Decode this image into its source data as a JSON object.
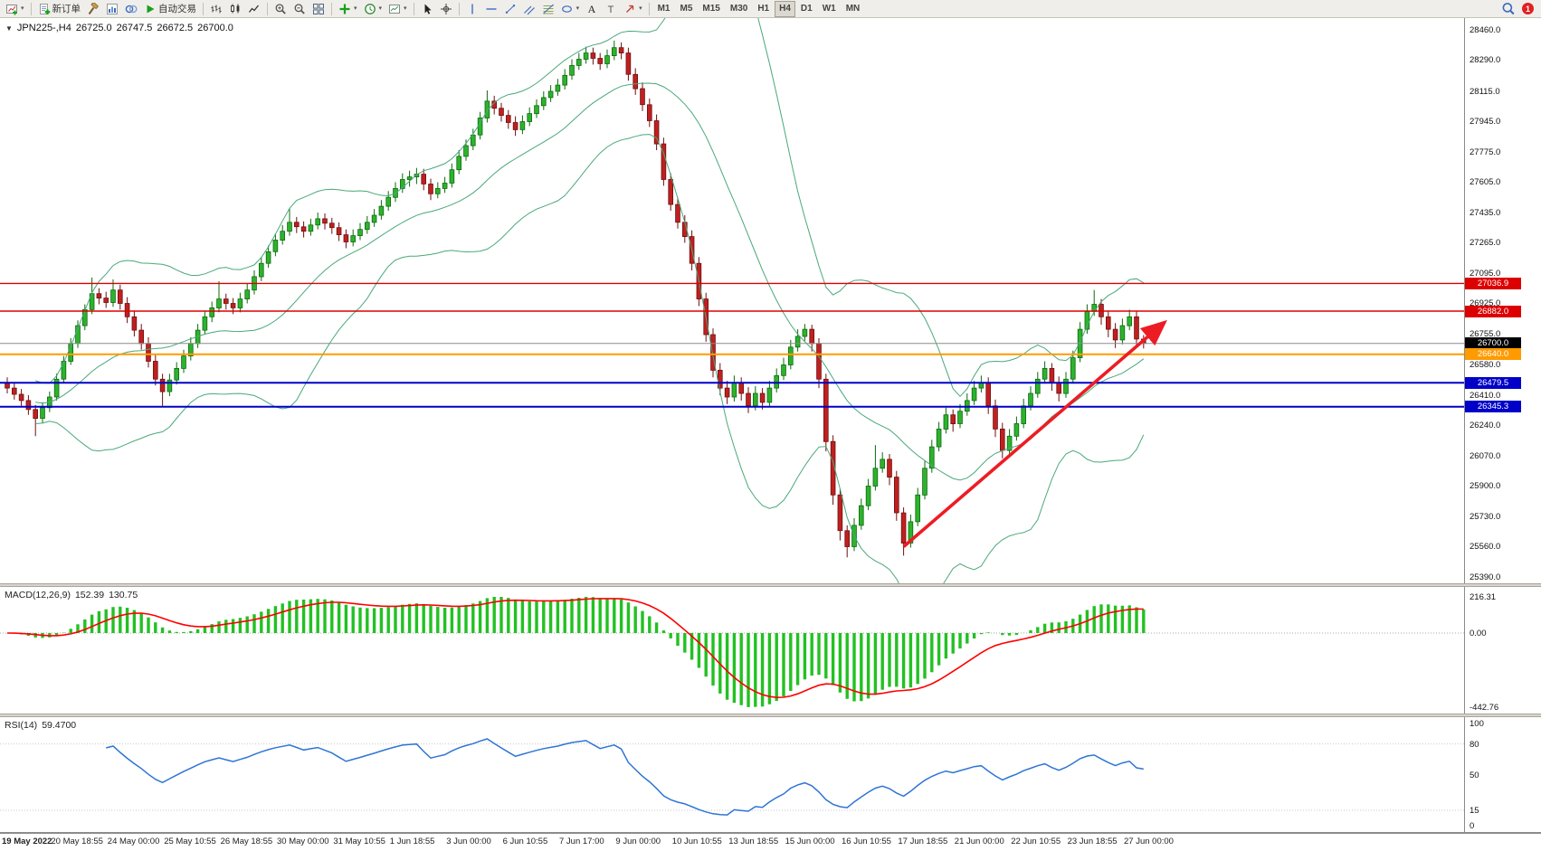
{
  "icons": {
    "symbol_caret": "▼",
    "caret_down": "▾"
  },
  "toolbar": {
    "notification_count": "1",
    "items": [
      {
        "type": "icon",
        "name": "new-chart-button",
        "icon": "new-chart",
        "caret": true
      },
      {
        "type": "sep"
      },
      {
        "type": "icon",
        "name": "new-order-button",
        "icon": "new-order",
        "label": "新订单"
      },
      {
        "type": "icon",
        "name": "strategy-tester-button",
        "icon": "hammer"
      },
      {
        "type": "icon",
        "name": "market-watch-button",
        "icon": "market"
      },
      {
        "type": "icon",
        "name": "data-window-button",
        "icon": "data-window"
      },
      {
        "type": "icon",
        "name": "auto-trading-button",
        "icon": "play",
        "label": "自动交易"
      },
      {
        "type": "sep"
      },
      {
        "type": "icon",
        "name": "bar-chart-button",
        "icon": "bars"
      },
      {
        "type": "icon",
        "name": "candlestick-chart-button",
        "icon": "candles"
      },
      {
        "type": "icon",
        "name": "line-chart-button",
        "icon": "line"
      },
      {
        "type": "sep"
      },
      {
        "type": "icon",
        "name": "zoom-in-button",
        "icon": "zoom-in"
      },
      {
        "type": "icon",
        "name": "zoom-out-button",
        "icon": "zoom-out"
      },
      {
        "type": "icon",
        "name": "tile-windows-button",
        "icon": "tile"
      },
      {
        "type": "sep"
      },
      {
        "type": "icon",
        "name": "indicators-button",
        "icon": "indicators",
        "caret": true
      },
      {
        "type": "icon",
        "name": "periods-button",
        "icon": "clock",
        "caret": true
      },
      {
        "type": "icon",
        "name": "templates-button",
        "icon": "template",
        "caret": true
      },
      {
        "type": "sep"
      },
      {
        "type": "icon",
        "name": "cursor-button",
        "icon": "cursor"
      },
      {
        "type": "icon",
        "name": "crosshair-button",
        "icon": "crosshair"
      },
      {
        "type": "sep"
      },
      {
        "type": "icon",
        "name": "vertical-line-button",
        "icon": "vline"
      },
      {
        "type": "icon",
        "name": "horizontal-line-button",
        "icon": "hline"
      },
      {
        "type": "icon",
        "name": "trendline-button",
        "icon": "trendline"
      },
      {
        "type": "icon",
        "name": "equidistant-channel-button",
        "icon": "channel"
      },
      {
        "type": "icon",
        "name": "fibonacci-button",
        "icon": "fibo"
      },
      {
        "type": "icon",
        "name": "shapes-button",
        "icon": "shapes",
        "caret": true
      },
      {
        "type": "icon",
        "name": "text-button",
        "icon": "text-a"
      },
      {
        "type": "icon",
        "name": "text-label-button",
        "icon": "text-t"
      },
      {
        "type": "icon",
        "name": "arrows-button",
        "icon": "arrow-glyph",
        "caret": true
      },
      {
        "type": "sep"
      },
      {
        "type": "tf",
        "name": "timeframe-m1-button",
        "label": "M1"
      },
      {
        "type": "tf",
        "name": "timeframe-m5-button",
        "label": "M5"
      },
      {
        "type": "tf",
        "name": "timeframe-m15-button",
        "label": "M15"
      },
      {
        "type": "tf",
        "name": "timeframe-m30-button",
        "label": "M30"
      },
      {
        "type": "tf",
        "name": "timeframe-h1-button",
        "label": "H1"
      },
      {
        "type": "tf",
        "name": "timeframe-h4-button",
        "label": "H4",
        "active": true
      },
      {
        "type": "tf",
        "name": "timeframe-d1-button",
        "label": "D1"
      },
      {
        "type": "tf",
        "name": "timeframe-w1-button",
        "label": "W1"
      },
      {
        "type": "tf",
        "name": "timeframe-mn-button",
        "label": "MN"
      }
    ]
  },
  "chart": {
    "symbol_label": "JPN225-,H4",
    "ohlc": {
      "open": "26725.0",
      "high": "26747.5",
      "low": "26672.5",
      "close": "26700.0"
    },
    "colors": {
      "bull": "#2eb22e",
      "bull_dark": "#0b6b0b",
      "bear": "#c02020",
      "bear_dark": "#6e0f0f",
      "bollinger": "#4aa87a",
      "macd_hist": "#22c122",
      "macd_signal": "#ff0000",
      "rsi": "#2e75d4",
      "red_line": "#dd0000",
      "blue_line": "#0000c8",
      "orange_line": "#ff9b00",
      "current_price_line": "#8c8c8c",
      "current_price_box": "#000000",
      "arrow": "#ed1c24",
      "background": "#ffffff"
    },
    "price_axis": {
      "labels": [
        "28460.0",
        "28290.0",
        "28115.0",
        "27945.0",
        "27775.0",
        "27605.0",
        "27435.0",
        "27265.0",
        "27095.0",
        "26925.0",
        "26755.0",
        "26580.0",
        "26410.0",
        "26240.0",
        "26070.0",
        "25900.0",
        "25730.0",
        "25560.0",
        "25390.0"
      ]
    },
    "hlines": [
      {
        "price": 27036.9,
        "label": "27036.9",
        "color": "#dd0000",
        "width": 1.4
      },
      {
        "price": 26882.0,
        "label": "26882.0",
        "color": "#dd0000",
        "width": 1.4
      },
      {
        "price": 26700.0,
        "label": "26700.0",
        "color": "#8c8c8c",
        "box": "#000000",
        "width": 1
      },
      {
        "price": 26640.0,
        "label": "26640.0",
        "color": "#ff9b00",
        "width": 2
      },
      {
        "price": 26479.5,
        "label": "26479.5",
        "color": "#0000c8",
        "width": 2
      },
      {
        "price": 26345.3,
        "label": "26345.3",
        "color": "#0000c8",
        "width": 2
      }
    ],
    "arrow": {
      "i1": 127,
      "p1": 25560,
      "i2": 164,
      "p2": 26820,
      "color": "#ed1c24"
    },
    "time_axis": {
      "labels": [
        "19 May 2022",
        "20 May 18:55",
        "24 May 00:00",
        "25 May 10:55",
        "26 May 18:55",
        "30 May 00:00",
        "31 May 10:55",
        "1 Jun 18:55",
        "3 Jun 00:00",
        "6 Jun 10:55",
        "7 Jun 17:00",
        "9 Jun 00:00",
        "10 Jun 10:55",
        "13 Jun 18:55",
        "15 Jun 00:00",
        "16 Jun 10:55",
        "17 Jun 18:55",
        "21 Jun 00:00",
        "22 Jun 10:55",
        "23 Jun 18:55",
        "27 Jun 00:00"
      ]
    }
  },
  "chart_data": {
    "type": "candlestick",
    "symbol": "JPN225-",
    "timeframe": "H4",
    "y_range": [
      25390,
      28460
    ],
    "indicators": {
      "bollinger": {
        "period": 20,
        "deviation": 2
      },
      "macd": {
        "label": "MACD(12,26,9)",
        "value_main": "152.39",
        "value_signal": "130.75",
        "params": [
          12,
          26,
          9
        ],
        "scale_labels": [
          "216.31",
          "0.00",
          "-442.76"
        ]
      },
      "rsi": {
        "label": "RSI(14)",
        "value": "59.4700",
        "period": 14,
        "scale_labels": [
          "100",
          "80",
          "50",
          "15",
          "0"
        ]
      }
    },
    "candles": [
      [
        26480,
        26510,
        26420,
        26450
      ],
      [
        26450,
        26480,
        26385,
        26415
      ],
      [
        26415,
        26445,
        26350,
        26380
      ],
      [
        26380,
        26410,
        26300,
        26330
      ],
      [
        26330,
        26355,
        26180,
        26280
      ],
      [
        26280,
        26370,
        26255,
        26340
      ],
      [
        26340,
        26430,
        26315,
        26400
      ],
      [
        26400,
        26530,
        26380,
        26500
      ],
      [
        26500,
        26630,
        26480,
        26600
      ],
      [
        26600,
        26730,
        26580,
        26700
      ],
      [
        26700,
        26830,
        26675,
        26800
      ],
      [
        26800,
        26920,
        26775,
        26890
      ],
      [
        26890,
        27070,
        26865,
        26980
      ],
      [
        26980,
        27010,
        26920,
        26955
      ],
      [
        26955,
        26990,
        26900,
        26930
      ],
      [
        26930,
        27060,
        26905,
        27000
      ],
      [
        27000,
        27030,
        26890,
        26925
      ],
      [
        26925,
        26960,
        26815,
        26850
      ],
      [
        26850,
        26885,
        26740,
        26775
      ],
      [
        26775,
        26810,
        26665,
        26700
      ],
      [
        26700,
        26735,
        26565,
        26600
      ],
      [
        26600,
        26640,
        26465,
        26500
      ],
      [
        26500,
        26530,
        26350,
        26430
      ],
      [
        26430,
        26530,
        26405,
        26495
      ],
      [
        26495,
        26595,
        26470,
        26560
      ],
      [
        26560,
        26665,
        26535,
        26630
      ],
      [
        26630,
        26735,
        26605,
        26700
      ],
      [
        26700,
        26810,
        26675,
        26775
      ],
      [
        26775,
        26885,
        26750,
        26850
      ],
      [
        26850,
        26935,
        26820,
        26900
      ],
      [
        26900,
        27050,
        26875,
        26950
      ],
      [
        26950,
        26980,
        26890,
        26925
      ],
      [
        26925,
        26955,
        26865,
        26900
      ],
      [
        26900,
        26985,
        26875,
        26950
      ],
      [
        26950,
        27035,
        26925,
        27000
      ],
      [
        27000,
        27110,
        26975,
        27075
      ],
      [
        27075,
        27185,
        27050,
        27150
      ],
      [
        27150,
        27250,
        27125,
        27215
      ],
      [
        27215,
        27315,
        27190,
        27280
      ],
      [
        27280,
        27365,
        27255,
        27330
      ],
      [
        27330,
        27460,
        27305,
        27380
      ],
      [
        27380,
        27410,
        27320,
        27355
      ],
      [
        27355,
        27385,
        27295,
        27330
      ],
      [
        27330,
        27400,
        27305,
        27365
      ],
      [
        27365,
        27435,
        27340,
        27400
      ],
      [
        27400,
        27430,
        27340,
        27375
      ],
      [
        27375,
        27405,
        27315,
        27350
      ],
      [
        27350,
        27380,
        27275,
        27310
      ],
      [
        27310,
        27340,
        27235,
        27270
      ],
      [
        27270,
        27340,
        27245,
        27305
      ],
      [
        27305,
        27375,
        27280,
        27340
      ],
      [
        27340,
        27415,
        27315,
        27380
      ],
      [
        27380,
        27455,
        27355,
        27420
      ],
      [
        27420,
        27505,
        27395,
        27470
      ],
      [
        27470,
        27555,
        27445,
        27520
      ],
      [
        27520,
        27605,
        27495,
        27570
      ],
      [
        27570,
        27655,
        27545,
        27620
      ],
      [
        27620,
        27670,
        27580,
        27635
      ],
      [
        27635,
        27685,
        27595,
        27650
      ],
      [
        27650,
        27680,
        27560,
        27595
      ],
      [
        27595,
        27625,
        27505,
        27540
      ],
      [
        27540,
        27605,
        27515,
        27570
      ],
      [
        27570,
        27635,
        27545,
        27600
      ],
      [
        27600,
        27710,
        27575,
        27675
      ],
      [
        27675,
        27785,
        27650,
        27750
      ],
      [
        27750,
        27845,
        27725,
        27810
      ],
      [
        27810,
        27905,
        27785,
        27870
      ],
      [
        27870,
        28000,
        27845,
        27965
      ],
      [
        27965,
        28120,
        27940,
        28060
      ],
      [
        28060,
        28090,
        27985,
        28020
      ],
      [
        28020,
        28050,
        27945,
        27980
      ],
      [
        27980,
        28010,
        27905,
        27940
      ],
      [
        27940,
        27975,
        27865,
        27900
      ],
      [
        27900,
        27980,
        27875,
        27945
      ],
      [
        27945,
        28025,
        27920,
        27990
      ],
      [
        27990,
        28070,
        27965,
        28035
      ],
      [
        28035,
        28115,
        28010,
        28080
      ],
      [
        28080,
        28150,
        28055,
        28115
      ],
      [
        28115,
        28185,
        28090,
        28150
      ],
      [
        28150,
        28240,
        28125,
        28205
      ],
      [
        28205,
        28295,
        28180,
        28260
      ],
      [
        28260,
        28330,
        28235,
        28295
      ],
      [
        28295,
        28365,
        28270,
        28330
      ],
      [
        28330,
        28360,
        28265,
        28300
      ],
      [
        28300,
        28330,
        28235,
        28270
      ],
      [
        28270,
        28350,
        28245,
        28315
      ],
      [
        28315,
        28400,
        28290,
        28360
      ],
      [
        28360,
        28390,
        28295,
        28330
      ],
      [
        28330,
        28360,
        28175,
        28210
      ],
      [
        28210,
        28245,
        28095,
        28130
      ],
      [
        28130,
        28165,
        28005,
        28040
      ],
      [
        28040,
        28075,
        27915,
        27950
      ],
      [
        27950,
        27985,
        27785,
        27820
      ],
      [
        27820,
        27855,
        27585,
        27620
      ],
      [
        27620,
        27655,
        27445,
        27480
      ],
      [
        27480,
        27520,
        27345,
        27380
      ],
      [
        27380,
        27420,
        27265,
        27300
      ],
      [
        27300,
        27335,
        27110,
        27150
      ],
      [
        27150,
        27185,
        26910,
        26950
      ],
      [
        26950,
        26985,
        26710,
        26750
      ],
      [
        26750,
        26785,
        26510,
        26550
      ],
      [
        26550,
        26590,
        26410,
        26450
      ],
      [
        26450,
        26490,
        26360,
        26400
      ],
      [
        26400,
        26520,
        26375,
        26480
      ],
      [
        26480,
        26510,
        26380,
        26420
      ],
      [
        26420,
        26455,
        26310,
        26350
      ],
      [
        26350,
        26460,
        26325,
        26420
      ],
      [
        26420,
        26450,
        26330,
        26370
      ],
      [
        26370,
        26490,
        26345,
        26450
      ],
      [
        26450,
        26560,
        26425,
        26520
      ],
      [
        26520,
        26620,
        26495,
        26580
      ],
      [
        26580,
        26720,
        26555,
        26680
      ],
      [
        26680,
        26780,
        26655,
        26740
      ],
      [
        26740,
        26810,
        26715,
        26780
      ],
      [
        26780,
        26805,
        26655,
        26700
      ],
      [
        26700,
        26730,
        26450,
        26500
      ],
      [
        26500,
        26530,
        26095,
        26150
      ],
      [
        26150,
        26185,
        25795,
        25850
      ],
      [
        25850,
        25885,
        25595,
        25650
      ],
      [
        25650,
        25680,
        25500,
        25560
      ],
      [
        25560,
        25720,
        25535,
        25680
      ],
      [
        25680,
        25830,
        25655,
        25790
      ],
      [
        25790,
        25940,
        25765,
        25900
      ],
      [
        25900,
        26130,
        25875,
        26000
      ],
      [
        26000,
        26090,
        25975,
        26050
      ],
      [
        26050,
        26080,
        25905,
        25950
      ],
      [
        25950,
        25985,
        25705,
        25750
      ],
      [
        25750,
        25780,
        25510,
        25580
      ],
      [
        25580,
        25740,
        25555,
        25700
      ],
      [
        25700,
        25890,
        25675,
        25850
      ],
      [
        25850,
        26040,
        25825,
        26000
      ],
      [
        26000,
        26160,
        25975,
        26120
      ],
      [
        26120,
        26260,
        26095,
        26220
      ],
      [
        26220,
        26340,
        26195,
        26300
      ],
      [
        26300,
        26330,
        26205,
        26250
      ],
      [
        26250,
        26360,
        26225,
        26320
      ],
      [
        26320,
        26420,
        26295,
        26380
      ],
      [
        26380,
        26490,
        26355,
        26450
      ],
      [
        26450,
        26520,
        26425,
        26480
      ],
      [
        26480,
        26510,
        26305,
        26350
      ],
      [
        26350,
        26385,
        26175,
        26220
      ],
      [
        26220,
        26255,
        26055,
        26100
      ],
      [
        26100,
        26220,
        26075,
        26180
      ],
      [
        26180,
        26290,
        26155,
        26250
      ],
      [
        26250,
        26390,
        26225,
        26350
      ],
      [
        26350,
        26460,
        26325,
        26420
      ],
      [
        26420,
        26540,
        26395,
        26500
      ],
      [
        26500,
        26600,
        26475,
        26560
      ],
      [
        26560,
        26590,
        26435,
        26480
      ],
      [
        26480,
        26515,
        26375,
        26420
      ],
      [
        26420,
        26540,
        26395,
        26500
      ],
      [
        26500,
        26660,
        26475,
        26620
      ],
      [
        26620,
        26820,
        26595,
        26780
      ],
      [
        26780,
        26920,
        26755,
        26880
      ],
      [
        26880,
        27000,
        26855,
        26920
      ],
      [
        26920,
        26950,
        26805,
        26850
      ],
      [
        26850,
        26885,
        26735,
        26780
      ],
      [
        26780,
        26815,
        26675,
        26720
      ],
      [
        26720,
        26840,
        26695,
        26800
      ],
      [
        26800,
        26890,
        26775,
        26850
      ],
      [
        26850,
        26880,
        26690,
        26725
      ],
      [
        26725,
        26747.5,
        26672.5,
        26700
      ]
    ]
  }
}
